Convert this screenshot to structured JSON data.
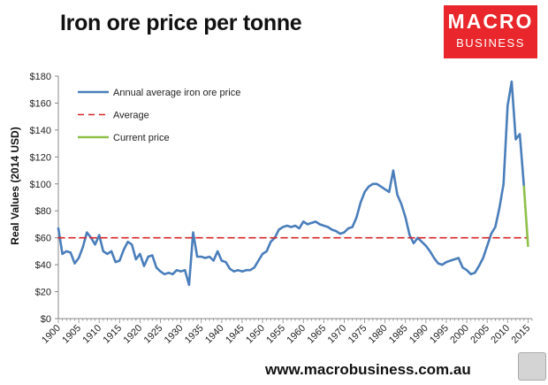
{
  "header": {
    "title": "Iron ore price per tonne",
    "logo_line1": "MACRO",
    "logo_line2": "BUSINESS",
    "url": "www.macrobusiness.com.au"
  },
  "colors": {
    "series": "#4a7ebb",
    "average": "#d9262a",
    "current": "#8ec04a",
    "logo": "#e8262b"
  },
  "chart_data": {
    "type": "line",
    "title": "Iron ore price per tonne",
    "xlabel": "",
    "ylabel": "Real Values (2014 USD)",
    "xlim": [
      1900,
      2016
    ],
    "ylim": [
      0,
      180
    ],
    "yticks": [
      0,
      20,
      40,
      60,
      80,
      100,
      120,
      140,
      160,
      180
    ],
    "ytick_labels": [
      "$0",
      "$20",
      "$40",
      "$60",
      "$80",
      "$100",
      "$120",
      "$140",
      "$160",
      "$180"
    ],
    "xticks": [
      1900,
      1905,
      1910,
      1915,
      1920,
      1925,
      1930,
      1935,
      1940,
      1945,
      1950,
      1955,
      1960,
      1965,
      1970,
      1975,
      1980,
      1985,
      1990,
      1995,
      2000,
      2005,
      2010,
      2015
    ],
    "legend_position": "top-left",
    "series": [
      {
        "name": "Annual average iron ore price",
        "x": [
          1900,
          1901,
          1902,
          1903,
          1904,
          1905,
          1906,
          1907,
          1908,
          1909,
          1910,
          1911,
          1912,
          1913,
          1914,
          1915,
          1916,
          1917,
          1918,
          1919,
          1920,
          1921,
          1922,
          1923,
          1924,
          1925,
          1926,
          1927,
          1928,
          1929,
          1930,
          1931,
          1932,
          1933,
          1934,
          1935,
          1936,
          1937,
          1938,
          1939,
          1940,
          1941,
          1942,
          1943,
          1944,
          1945,
          1946,
          1947,
          1948,
          1949,
          1950,
          1951,
          1952,
          1953,
          1954,
          1955,
          1956,
          1957,
          1958,
          1959,
          1960,
          1961,
          1962,
          1963,
          1964,
          1965,
          1966,
          1967,
          1968,
          1969,
          1970,
          1971,
          1972,
          1973,
          1974,
          1975,
          1976,
          1977,
          1978,
          1979,
          1980,
          1981,
          1982,
          1983,
          1984,
          1985,
          1986,
          1987,
          1988,
          1989,
          1990,
          1991,
          1992,
          1993,
          1994,
          1995,
          1996,
          1997,
          1998,
          1999,
          2000,
          2001,
          2002,
          2003,
          2004,
          2005,
          2006,
          2007,
          2008,
          2009,
          2010,
          2011,
          2012,
          2013,
          2014
        ],
        "values": [
          67,
          48,
          50,
          49,
          41,
          45,
          53,
          64,
          60,
          55,
          62,
          50,
          48,
          50,
          42,
          43,
          51,
          57,
          55,
          44,
          48,
          39,
          46,
          47,
          38,
          35,
          33,
          34,
          33,
          36,
          35,
          36,
          25,
          64,
          46,
          46,
          45,
          46,
          43,
          50,
          43,
          42,
          37,
          35,
          36,
          35,
          36,
          36,
          38,
          43,
          48,
          50,
          57,
          60,
          66,
          68,
          69,
          68,
          69,
          67,
          72,
          70,
          71,
          72,
          70,
          69,
          68,
          66,
          65,
          63,
          64,
          67,
          68,
          75,
          86,
          94,
          98,
          100,
          100,
          98,
          96,
          94,
          110,
          92,
          85,
          75,
          62,
          56,
          60,
          57,
          54,
          50,
          45,
          41,
          40,
          42,
          43,
          44,
          45,
          38,
          36,
          33,
          34,
          39,
          45,
          54,
          63,
          68,
          82,
          100,
          158,
          176,
          133,
          137,
          98
        ],
        "color": "#4a7ebb"
      },
      {
        "name": "Average",
        "x": [
          1900,
          2015
        ],
        "values": [
          60,
          60
        ],
        "color": "#d9262a",
        "style": "dashed"
      },
      {
        "name": "Current price",
        "x": [
          2014,
          2015
        ],
        "values": [
          98,
          54
        ],
        "color": "#8ec04a"
      }
    ]
  }
}
